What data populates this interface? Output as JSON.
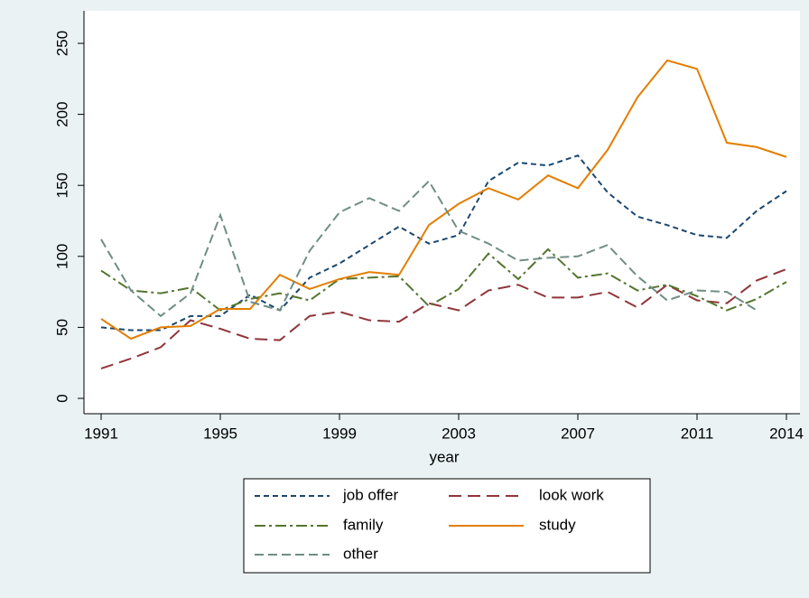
{
  "chart_data": {
    "type": "line",
    "x_label": "year",
    "x": [
      1991,
      1992,
      1993,
      1994,
      1995,
      1996,
      1997,
      1998,
      1999,
      2000,
      2001,
      2002,
      2003,
      2004,
      2005,
      2006,
      2007,
      2008,
      2009,
      2010,
      2011,
      2012,
      2013,
      2014
    ],
    "xlim": [
      1991,
      2014
    ],
    "xticks": [
      1991,
      1995,
      1999,
      2003,
      2007,
      2011,
      2014
    ],
    "ylim": [
      0,
      250
    ],
    "yticks": [
      0,
      50,
      100,
      150,
      200,
      250
    ],
    "grid": false,
    "legend": "bottom",
    "series": [
      {
        "name": "job offer",
        "color": "#1a476f",
        "dash": "6,4",
        "values": [
          50,
          48,
          48,
          58,
          58,
          73,
          62,
          85,
          95,
          108,
          121,
          109,
          115,
          153,
          166,
          164,
          171,
          145,
          128,
          122,
          115,
          113,
          132,
          146
        ]
      },
      {
        "name": "look work",
        "color": "#90353b",
        "dash": "14,7",
        "values": [
          21,
          28,
          36,
          55,
          49,
          42,
          41,
          58,
          61,
          55,
          54,
          67,
          62,
          76,
          80,
          71,
          71,
          75,
          64,
          80,
          69,
          67,
          83,
          91
        ]
      },
      {
        "name": "family",
        "color": "#55752f",
        "dash": "12,4,3,4",
        "values": [
          90,
          76,
          74,
          78,
          62,
          70,
          74,
          69,
          84,
          85,
          86,
          65,
          77,
          102,
          84,
          105,
          85,
          88,
          76,
          80,
          72,
          62,
          70,
          82
        ]
      },
      {
        "name": "study",
        "color": "#e37e00",
        "dash": "none",
        "values": [
          56,
          42,
          50,
          51,
          63,
          63,
          87,
          77,
          84,
          89,
          87,
          122,
          137,
          148,
          140,
          157,
          148,
          175,
          212,
          238,
          232,
          180,
          177,
          170
        ]
      },
      {
        "name": "other",
        "color": "#6e8e84",
        "dash": "10,5",
        "values": [
          112,
          76,
          58,
          74,
          129,
          68,
          62,
          104,
          131,
          141,
          132,
          153,
          118,
          109,
          97,
          99,
          100,
          108,
          86,
          69,
          76,
          75,
          62,
          null
        ]
      }
    ]
  }
}
